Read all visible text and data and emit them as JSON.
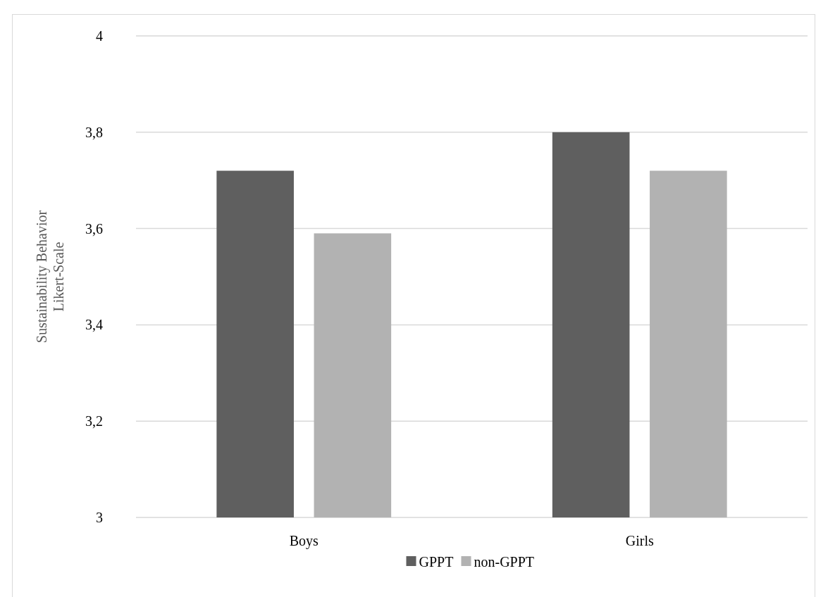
{
  "chart_data": {
    "type": "bar",
    "ylabel": "Sustainability Behavior\nLikert-Scale",
    "categories": [
      "Boys",
      "Girls"
    ],
    "series": [
      {
        "name": "GPPT",
        "color": "#5f5f5f",
        "values": [
          3.72,
          3.8
        ]
      },
      {
        "name": "non-GPPT",
        "color": "#b2b2b2",
        "values": [
          3.59,
          3.72
        ]
      }
    ],
    "ylim": [
      3,
      4
    ],
    "yticks": [
      3,
      {
        "value": 3.2,
        "label": "3,2"
      },
      {
        "value": 3.4,
        "label": "3,4"
      },
      {
        "value": 3.6,
        "label": "3,6"
      },
      {
        "value": 3.8,
        "label": "3,8"
      },
      4
    ],
    "grid": "y",
    "legend": "bottom"
  }
}
